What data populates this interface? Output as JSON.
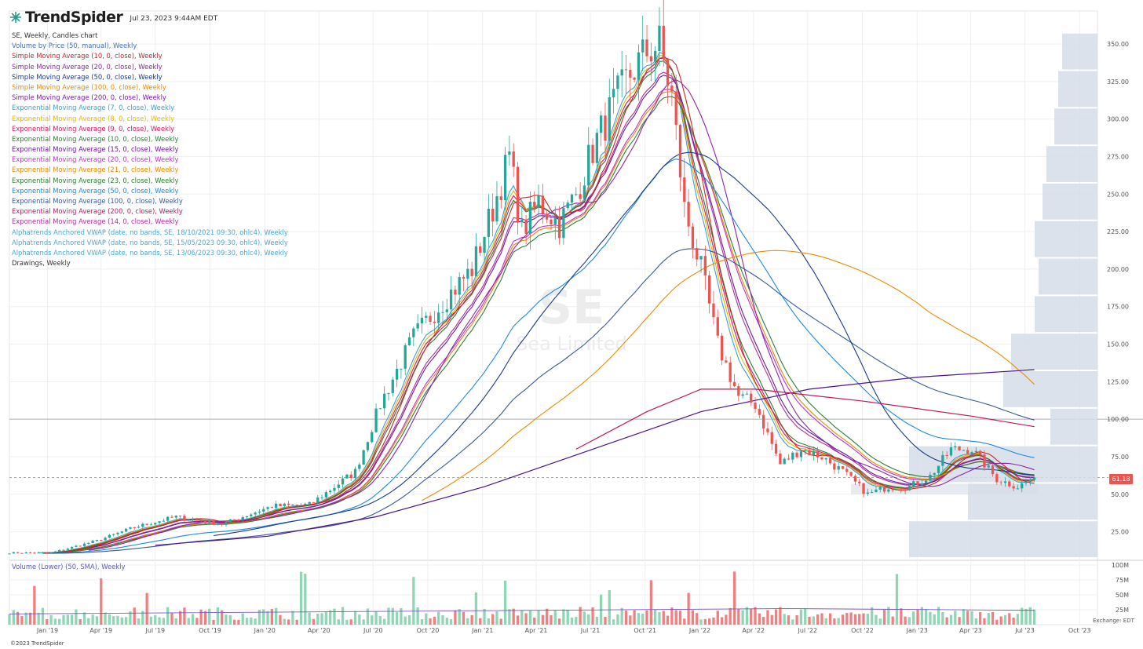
{
  "app": {
    "brand": "TrendSpider",
    "timestamp": "Jul 23, 2023 9:44AM EDT",
    "copyright": "©2023 TrendSpider",
    "exchange_label": "Exchange: EDT"
  },
  "watermark": {
    "ticker": "SE",
    "company": "Sea Limited"
  },
  "legend": [
    {
      "label": "SE, Weekly, Candles chart",
      "color": "#333333"
    },
    {
      "label": "Volume by Price (50, manual), Weekly",
      "color": "#4a6fb5"
    },
    {
      "label": "Simple Moving Average (10, 0, close), Weekly",
      "color": "#c62828"
    },
    {
      "label": "Simple Moving Average (20, 0, close), Weekly",
      "color": "#8e24aa"
    },
    {
      "label": "Simple Moving Average (50, 0, close), Weekly",
      "color": "#1a3a8a"
    },
    {
      "label": "Simple Moving Average (100, 0, close), Weekly",
      "color": "#ef8a00"
    },
    {
      "label": "Simple Moving Average (200, 0, close), Weekly",
      "color": "#7b1fa2"
    },
    {
      "label": "Exponential Moving Average (7, 0, close), Weekly",
      "color": "#3aa0d8"
    },
    {
      "label": "Exponential Moving Average (8, 0, close), Weekly",
      "color": "#e6b800"
    },
    {
      "label": "Exponential Moving Average (9, 0, close), Weekly",
      "color": "#d81b60"
    },
    {
      "label": "Exponential Moving Average (10, 0, close), Weekly",
      "color": "#2e7d32"
    },
    {
      "label": "Exponential Moving Average (15, 0, close), Weekly",
      "color": "#6a1b9a"
    },
    {
      "label": "Exponential Moving Average (20, 0, close), Weekly",
      "color": "#c030d0"
    },
    {
      "label": "Exponential Moving Average (21, 0, close), Weekly",
      "color": "#ef8a00"
    },
    {
      "label": "Exponential Moving Average (23, 0, close), Weekly",
      "color": "#2e7d32"
    },
    {
      "label": "Exponential Moving Average (50, 0, close), Weekly",
      "color": "#1e88e5"
    },
    {
      "label": "Exponential Moving Average (100, 0, close), Weekly",
      "color": "#3a5a9a"
    },
    {
      "label": "Exponential Moving Average (200, 0, close), Weekly",
      "color": "#c2185b"
    },
    {
      "label": "Exponential Moving Average (14, 0, close), Weekly",
      "color": "#b0309a"
    },
    {
      "label": "Alphatrends Anchored VWAP (date, no bands, SE, 18/10/2021 09:30, ohlc4), Weekly",
      "color": "#4aa8d8"
    },
    {
      "label": "Alphatrends Anchored VWAP (date, no bands, SE, 15/05/2023 09:30, ohlc4), Weekly",
      "color": "#4aa8d8"
    },
    {
      "label": "Alphatrends Anchored VWAP (date, no bands, SE, 13/06/2023 09:30, ohlc4), Weekly",
      "color": "#4aa8d8"
    },
    {
      "label": "Drawings, Weekly",
      "color": "#333333"
    }
  ],
  "volume_label": "Volume (Lower) (50, SMA), Weekly",
  "last_price": "61.18",
  "chart_data": {
    "type": "candlestick",
    "ticker": "SE",
    "interval": "Weekly",
    "x_start": "2018-10-29",
    "x_end": "2023-10-31",
    "x_ticks": [
      "Jan '19",
      "Apr '19",
      "Jul '19",
      "Oct '19",
      "Jan '20",
      "Apr '20",
      "Jul '20",
      "Oct '20",
      "Jan '21",
      "Apr '21",
      "Jul '21",
      "Oct '21",
      "Jan '22",
      "Apr '22",
      "Jul '22",
      "Oct '22",
      "Jan '23",
      "Apr '23",
      "Jul '23",
      "Oct '23"
    ],
    "y_ticks": [
      "25.00",
      "50.00",
      "75.00",
      "100.00",
      "125.00",
      "150.00",
      "175.00",
      "200.00",
      "225.00",
      "250.00",
      "275.00",
      "300.00",
      "325.00",
      "350.00"
    ],
    "ylim": [
      7,
      372
    ],
    "horizontal_line": 100,
    "close_anchors": [
      [
        "2018-10-29",
        11
      ],
      [
        "2019-01-07",
        11
      ],
      [
        "2019-03-25",
        19
      ],
      [
        "2019-05-27",
        28
      ],
      [
        "2019-08-05",
        35
      ],
      [
        "2019-10-21",
        30
      ],
      [
        "2020-01-13",
        42
      ],
      [
        "2020-03-16",
        43
      ],
      [
        "2020-06-01",
        65
      ],
      [
        "2020-07-13",
        110
      ],
      [
        "2020-09-07",
        155
      ],
      [
        "2020-10-19",
        175
      ],
      [
        "2020-12-14",
        200
      ],
      [
        "2021-01-18",
        240
      ],
      [
        "2021-02-15",
        275
      ],
      [
        "2021-03-08",
        225
      ],
      [
        "2021-04-05",
        245
      ],
      [
        "2021-05-10",
        230
      ],
      [
        "2021-06-07",
        250
      ],
      [
        "2021-07-05",
        280
      ],
      [
        "2021-08-09",
        310
      ],
      [
        "2021-09-06",
        330
      ],
      [
        "2021-10-04",
        345
      ],
      [
        "2021-10-25",
        350
      ],
      [
        "2021-11-15",
        315
      ],
      [
        "2021-12-06",
        240
      ],
      [
        "2022-01-03",
        200
      ],
      [
        "2022-01-31",
        150
      ],
      [
        "2022-03-07",
        115
      ],
      [
        "2022-04-04",
        110
      ],
      [
        "2022-05-16",
        70
      ],
      [
        "2022-06-20",
        80
      ],
      [
        "2022-07-25",
        75
      ],
      [
        "2022-08-29",
        65
      ],
      [
        "2022-10-10",
        50
      ],
      [
        "2022-11-14",
        55
      ],
      [
        "2022-12-19",
        55
      ],
      [
        "2023-01-23",
        62
      ],
      [
        "2023-02-27",
        80
      ],
      [
        "2023-04-03",
        80
      ],
      [
        "2023-05-15",
        60
      ],
      [
        "2023-06-19",
        55
      ],
      [
        "2023-07-17",
        61.18
      ]
    ],
    "sma200_anchors": [
      [
        "2019-07-01",
        16
      ],
      [
        "2020-01-06",
        22
      ],
      [
        "2020-07-06",
        35
      ],
      [
        "2021-01-04",
        55
      ],
      [
        "2021-07-05",
        80
      ],
      [
        "2022-01-03",
        105
      ],
      [
        "2022-07-04",
        120
      ],
      [
        "2023-01-02",
        128
      ],
      [
        "2023-07-17",
        133
      ]
    ],
    "ema200_anchors": [
      [
        "2021-06-07",
        80
      ],
      [
        "2021-10-04",
        105
      ],
      [
        "2022-01-03",
        120
      ],
      [
        "2022-04-04",
        120
      ],
      [
        "2022-10-03",
        112
      ],
      [
        "2023-04-03",
        102
      ],
      [
        "2023-07-17",
        95
      ]
    ],
    "volume_ticks": [
      "25M",
      "50M",
      "75M",
      "100M"
    ],
    "volume_max": 100,
    "volume_by_price": [
      [
        20,
        240
      ],
      [
        45,
        165
      ],
      [
        70,
        240
      ],
      [
        95,
        60
      ],
      [
        120,
        120
      ],
      [
        145,
        110
      ],
      [
        170,
        80
      ],
      [
        195,
        75
      ],
      [
        220,
        80
      ],
      [
        245,
        70
      ],
      [
        270,
        65
      ],
      [
        295,
        55
      ],
      [
        320,
        50
      ],
      [
        345,
        45
      ]
    ]
  }
}
